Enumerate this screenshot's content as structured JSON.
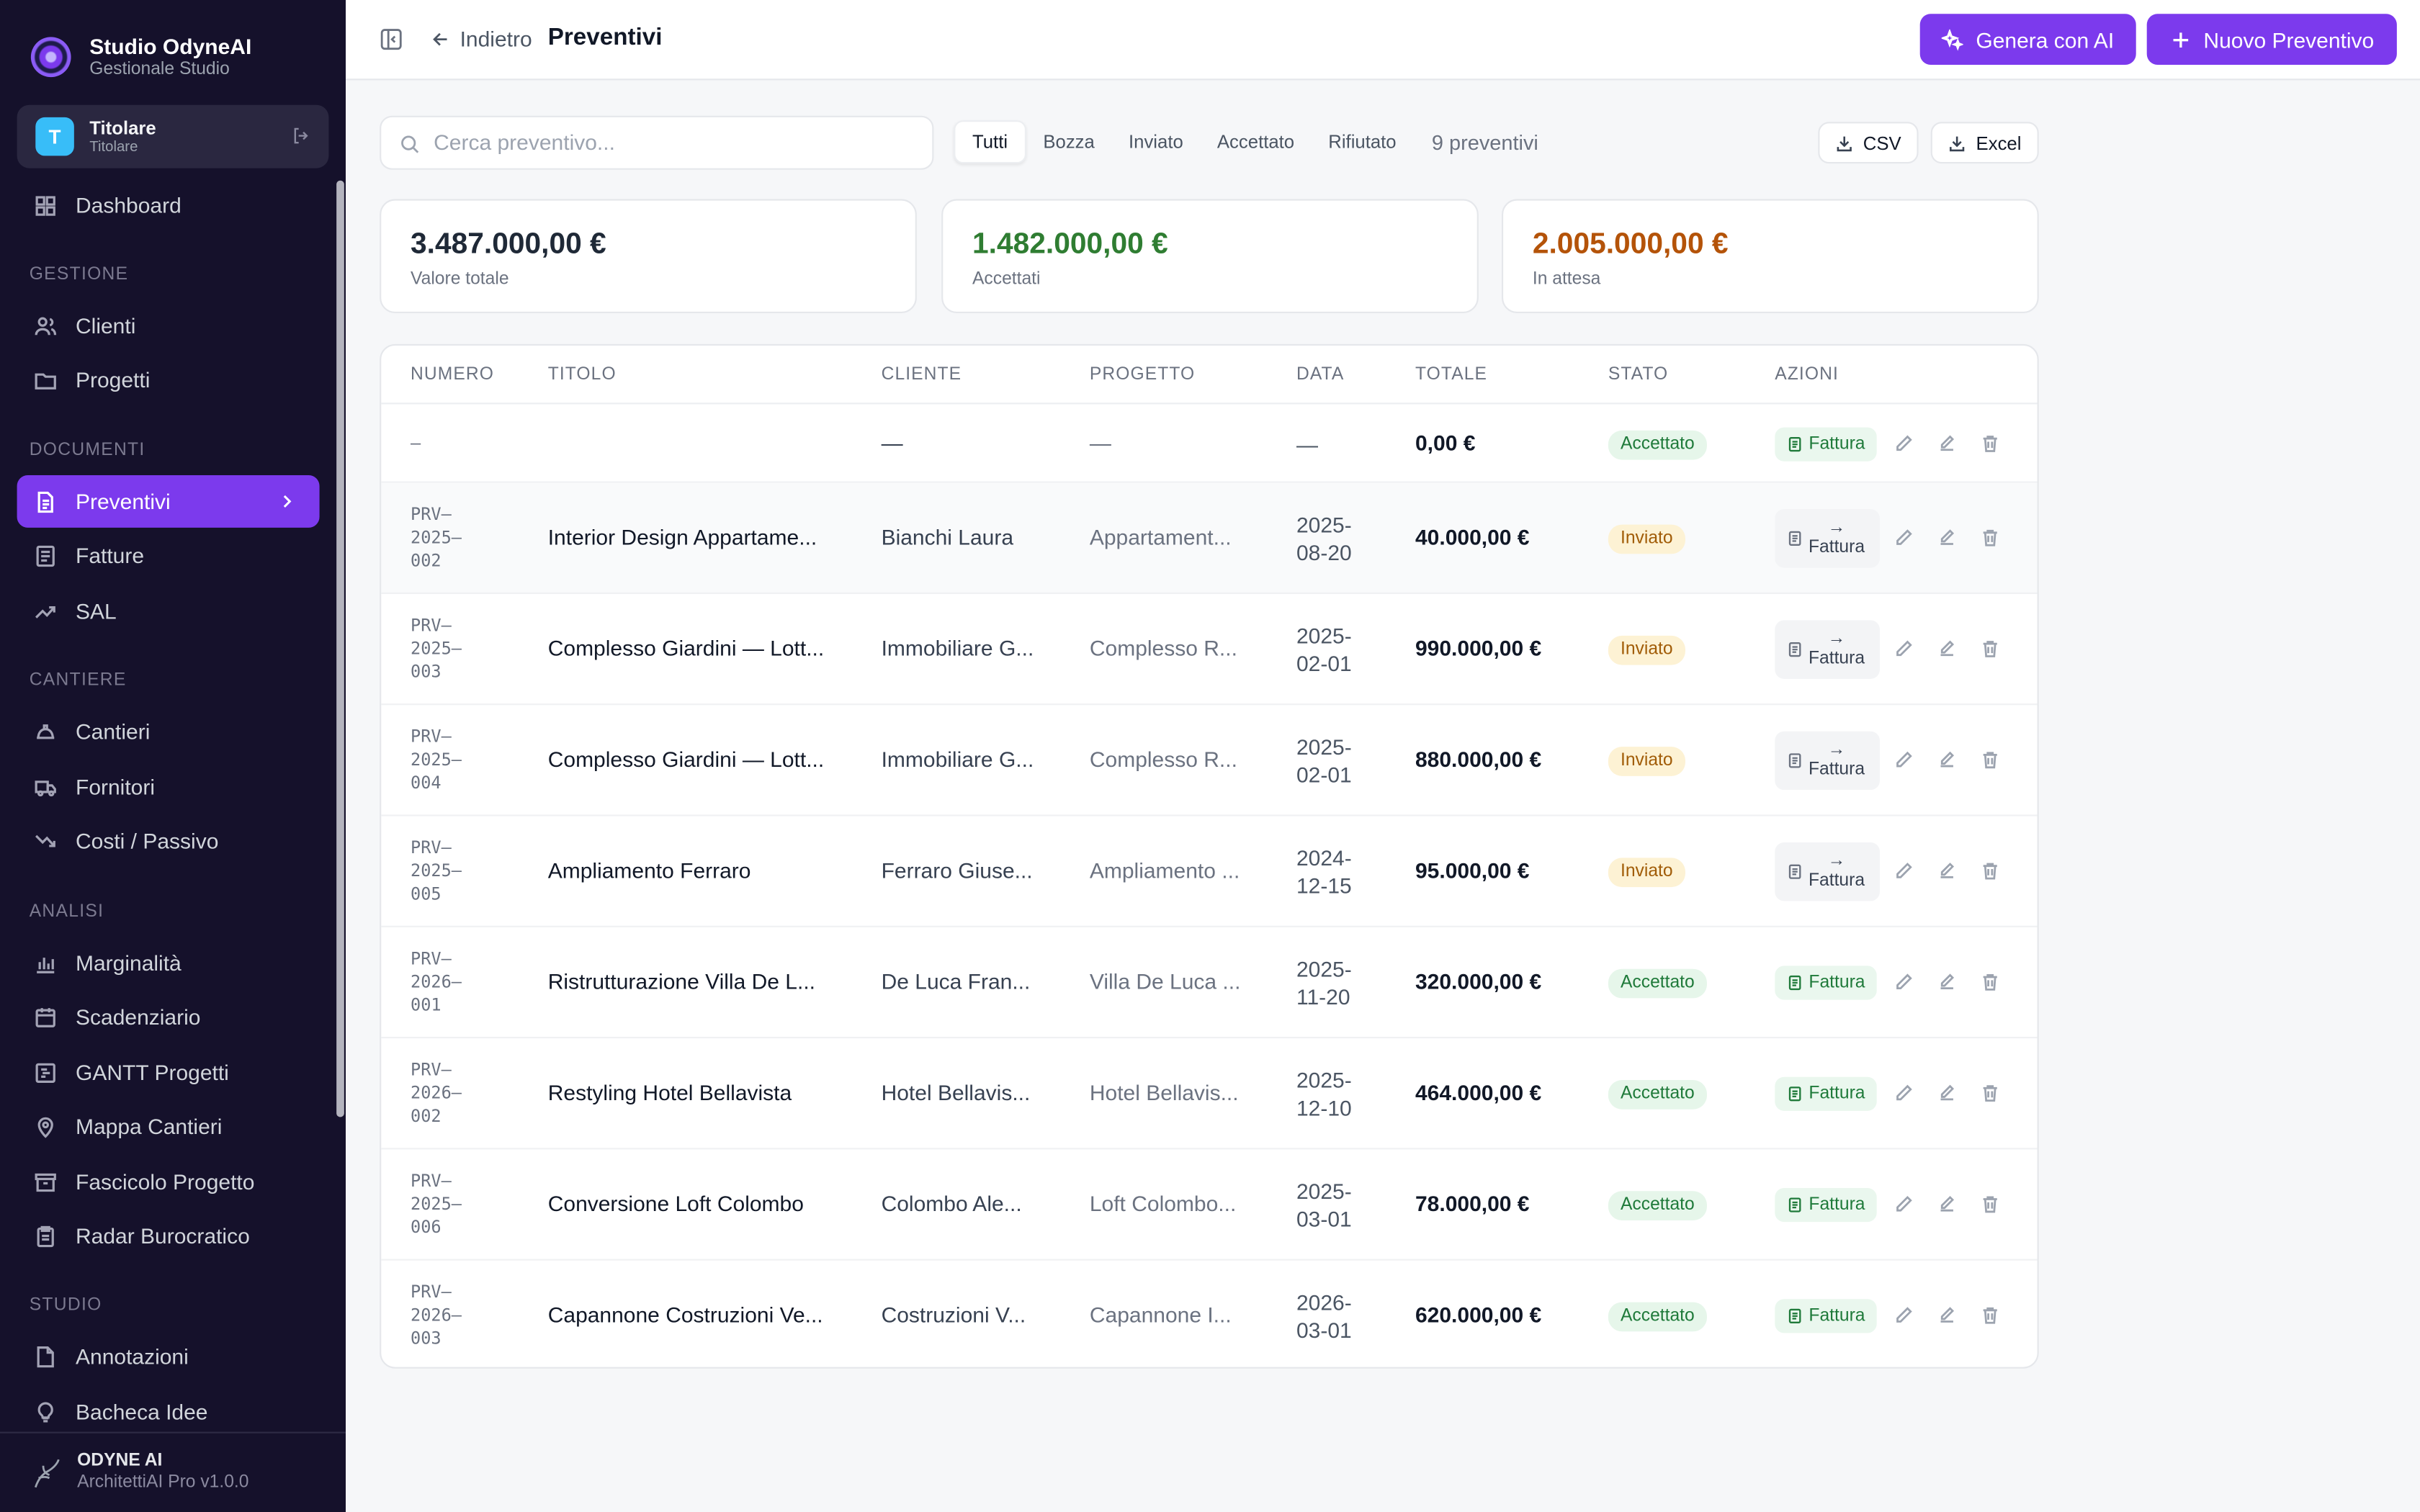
{
  "brand": {
    "title": "Studio OdyneAI",
    "subtitle": "Gestionale Studio"
  },
  "user": {
    "initial": "T",
    "name": "Titolare",
    "role": "Titolare"
  },
  "nav": {
    "dashboard": "Dashboard",
    "sections": {
      "gestione": "GESTIONE",
      "documenti": "DOCUMENTI",
      "cantiere": "CANTIERE",
      "analisi": "ANALISI",
      "studio": "STUDIO"
    },
    "clienti": "Clienti",
    "progetti": "Progetti",
    "preventivi": "Preventivi",
    "fatture": "Fatture",
    "sal": "SAL",
    "cantieri": "Cantieri",
    "fornitori": "Fornitori",
    "costi": "Costi / Passivo",
    "marginalita": "Marginalità",
    "scadenziario": "Scadenziario",
    "gantt": "GANTT Progetti",
    "mappa": "Mappa Cantieri",
    "fascicolo": "Fascicolo Progetto",
    "radar": "Radar Burocratico",
    "annotazioni": "Annotazioni",
    "bacheca": "Bacheca Idee"
  },
  "footer": {
    "title": "ODYNE AI",
    "subtitle": "ArchitettiAI Pro v1.0.0"
  },
  "header": {
    "back": "Indietro",
    "title": "Preventivi",
    "ai_button": "Genera con AI",
    "new_button": "Nuovo Preventivo"
  },
  "toolbar": {
    "search_placeholder": "Cerca preventivo...",
    "filters": {
      "all": "Tutti",
      "draft": "Bozza",
      "sent": "Inviato",
      "accepted": "Accettato",
      "rejected": "Rifiutato"
    },
    "count": "9 preventivi",
    "csv": "CSV",
    "excel": "Excel"
  },
  "stats": {
    "total": {
      "value": "3.487.000,00 €",
      "label": "Valore totale",
      "color": "#1f2937"
    },
    "accepted": {
      "value": "1.482.000,00 €",
      "label": "Accettati",
      "color": "#2f7d32"
    },
    "pending": {
      "value": "2.005.000,00 €",
      "label": "In attesa",
      "color": "#b45309"
    }
  },
  "table": {
    "headers": {
      "numero": "NUMERO",
      "titolo": "TITOLO",
      "cliente": "CLIENTE",
      "progetto": "PROGETTO",
      "data": "DATA",
      "totale": "TOTALE",
      "stato": "STATO",
      "azioni": "AZIONI"
    },
    "invoice_label": "Fattura",
    "invoice_pending_label": "→\nFattura",
    "rows": [
      {
        "numero": "–",
        "titolo": "",
        "cliente": "—",
        "progetto": "—",
        "data": "—",
        "totale": "0,00 €",
        "stato": "Accettato"
      },
      {
        "numero": "PRV–\n2025–\n002",
        "titolo": "Interior Design Appartame...",
        "cliente": "Bianchi Laura",
        "progetto": "Appartament...",
        "data": "2025-\n08-20",
        "totale": "40.000,00 €",
        "stato": "Inviato"
      },
      {
        "numero": "PRV–\n2025–\n003",
        "titolo": "Complesso Giardini — Lott...",
        "cliente": "Immobiliare G...",
        "progetto": "Complesso R...",
        "data": "2025-\n02-01",
        "totale": "990.000,00 €",
        "stato": "Inviato"
      },
      {
        "numero": "PRV–\n2025–\n004",
        "titolo": "Complesso Giardini — Lott...",
        "cliente": "Immobiliare G...",
        "progetto": "Complesso R...",
        "data": "2025-\n02-01",
        "totale": "880.000,00 €",
        "stato": "Inviato"
      },
      {
        "numero": "PRV–\n2025–\n005",
        "titolo": "Ampliamento Ferraro",
        "cliente": "Ferraro Giuse...",
        "progetto": "Ampliamento ...",
        "data": "2024-\n12-15",
        "totale": "95.000,00 €",
        "stato": "Inviato"
      },
      {
        "numero": "PRV–\n2026–\n001",
        "titolo": "Ristrutturazione Villa De L...",
        "cliente": "De Luca Fran...",
        "progetto": "Villa De Luca ...",
        "data": "2025-\n11-20",
        "totale": "320.000,00 €",
        "stato": "Accettato"
      },
      {
        "numero": "PRV–\n2026–\n002",
        "titolo": "Restyling Hotel Bellavista",
        "cliente": "Hotel Bellavis...",
        "progetto": "Hotel Bellavis...",
        "data": "2025-\n12-10",
        "totale": "464.000,00 €",
        "stato": "Accettato"
      },
      {
        "numero": "PRV–\n2025–\n006",
        "titolo": "Conversione Loft Colombo",
        "cliente": "Colombo Ale...",
        "progetto": "Loft Colombo...",
        "data": "2025-\n03-01",
        "totale": "78.000,00 €",
        "stato": "Accettato"
      },
      {
        "numero": "PRV–\n2026–\n003",
        "titolo": "Capannone Costruzioni Ve...",
        "cliente": "Costruzioni V...",
        "progetto": "Capannone I...",
        "data": "2026-\n03-01",
        "totale": "620.000,00 €",
        "stato": "Accettato"
      }
    ]
  },
  "colors": {
    "accent": "#7c3aed",
    "sidebar_bg": "#15112b"
  }
}
